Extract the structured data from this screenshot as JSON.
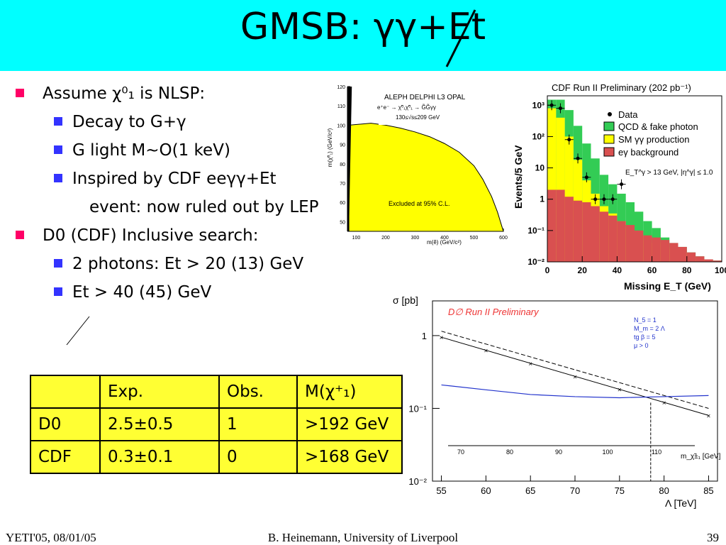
{
  "title": {
    "text": "GMSB: γγ+Et",
    "sub": ""
  },
  "bullets": {
    "b1": "Assume χ⁰₁ is NLSP:",
    "b1a": "Decay to G+γ",
    "b1b": "G light M~O(1 keV)",
    "b1c": "Inspired by CDF eeγγ+Et",
    "b1d": "event: now ruled out by LEP",
    "b2": "D0 (CDF) Inclusive search:",
    "b2a": "2 photons: Et > 20 (13) GeV",
    "b2b": "Et > 40 (45) GeV"
  },
  "table": {
    "header": [
      "",
      "Exp.",
      "Obs.",
      "M(χ⁺₁)"
    ],
    "rows": [
      [
        "D0",
        "2.5±0.5",
        "1",
        ">192 GeV"
      ],
      [
        "CDF",
        "0.3±0.1",
        "0",
        ">168 GeV"
      ]
    ]
  },
  "footer": {
    "left": "YETI'05, 08/01/05",
    "center": "B. Heinemann, University of Liverpool",
    "right": "39"
  },
  "colors": {
    "title_bg": "#00ffff",
    "bullet1": "#ff0066",
    "bullet2": "#3333ff",
    "table_bg": "#ffff33"
  },
  "chart_data": [
    {
      "type": "area",
      "legend": "ALEPH DELPHI L3 OPAL",
      "process": "e⁺e⁻ → χ̃⁰₁χ̃⁰₁ → G̃G̃γγ",
      "energy": "130≤√s≤209 GeV",
      "annotation": "Excluded at 95% C.L.",
      "xlabel": "m(ẽ) (GeV/c²)",
      "ylabel": "m(χ̃⁰₁) (GeV/c²)",
      "xlim": [
        70,
        600
      ],
      "ylim": [
        45,
        120
      ],
      "xticks": [
        "100",
        "200",
        "300",
        "400",
        "500",
        "600"
      ],
      "yticks": [
        "50",
        "60",
        "70",
        "80",
        "90",
        "100",
        "110",
        "120"
      ],
      "boundary_x": [
        75,
        150,
        200,
        250,
        300,
        350,
        400,
        450,
        500,
        530,
        560,
        580,
        600
      ],
      "boundary_y": [
        100,
        101,
        100,
        98.5,
        96.5,
        94,
        90.5,
        86,
        79,
        72,
        63,
        55,
        45
      ]
    },
    {
      "type": "bar",
      "title": "CDF Run II Preliminary (202 pb⁻¹)",
      "xlabel": "Missing E_T (GeV)",
      "ylabel": "Events/5 GeV",
      "cut_text": "E_T^γ > 13 GeV, |η^γ| ≤ 1.0",
      "yscale": "log",
      "ylim": [
        0.01,
        2000
      ],
      "xlim": [
        0,
        100
      ],
      "xticks": [
        "0",
        "20",
        "40",
        "60",
        "80",
        "100"
      ],
      "yticks": [
        "10⁻²",
        "10⁻¹",
        "1",
        "10",
        "10²",
        "10³"
      ],
      "bin_edges": [
        0,
        5,
        10,
        15,
        20,
        25,
        30,
        35,
        40,
        45,
        50,
        55,
        60,
        65,
        70,
        75,
        80,
        85,
        90,
        95,
        100
      ],
      "series": [
        {
          "name": "QCD & fake photon",
          "color": "#33cc55",
          "values": [
            1500,
            1500,
            700,
            220,
            60,
            20,
            6,
            3,
            1.5,
            0.8,
            0.4,
            0.2,
            0.12,
            0.06,
            0.04,
            0.03,
            0.02,
            0.015,
            0.012,
            0.011
          ]
        },
        {
          "name": "SM γγ production",
          "color": "#ffff00",
          "values": [
            800,
            400,
            100,
            18,
            4,
            1.5,
            0.6,
            0.35,
            0.2,
            0.12,
            0.07,
            0.05,
            0.04,
            0.03,
            0.025,
            0.02,
            0.015,
            0.012,
            0.011,
            0.01
          ]
        },
        {
          "name": "eγ background",
          "color": "#d95050",
          "values": [
            2,
            2,
            1.2,
            0.9,
            0.8,
            0.6,
            0.4,
            0.3,
            0.2,
            0.15,
            0.1,
            0.07,
            0.06,
            0.05,
            0.04,
            0.03,
            0.02,
            0.015,
            0.012,
            0.011
          ]
        }
      ],
      "data_points": {
        "name": "Data",
        "x": [
          2.5,
          7.5,
          12.5,
          17.5,
          22.5,
          27.5,
          32.5,
          37.5,
          42.5
        ],
        "y": [
          1000,
          800,
          80,
          20,
          5,
          1,
          1,
          1,
          3
        ]
      }
    },
    {
      "type": "line",
      "title": "D∅ Run II Preliminary",
      "ylabel": "σ [pb]",
      "xlabel": "Λ [TeV]",
      "xlabel2": "m_χ̃±₁ [GeV]",
      "params": [
        "N_5 = 1",
        "M_m = 2 Λ",
        "tg β = 5",
        "μ > 0"
      ],
      "yscale": "log",
      "ylim": [
        0.01,
        3
      ],
      "xlim": [
        54,
        86
      ],
      "xticks": [
        "55",
        "60",
        "65",
        "70",
        "75",
        "80",
        "85"
      ],
      "x2ticks": [
        "70",
        "80",
        "90",
        "100",
        "110"
      ],
      "yticks": [
        "10⁻²",
        "10⁻¹",
        "1"
      ],
      "series": [
        {
          "name": "",
          "x": [
            55,
            85
          ],
          "y": [
            0.95,
            0.08
          ]
        },
        {
          "name": "",
          "x": [
            55,
            85
          ],
          "y": [
            1.15,
            0.1
          ]
        },
        {
          "name": "",
          "x": [
            55,
            60,
            65,
            70,
            75,
            80,
            85
          ],
          "y": [
            0.21,
            0.18,
            0.155,
            0.145,
            0.14,
            0.145,
            0.15
          ]
        }
      ],
      "markers_x": [
        55,
        60,
        65,
        70,
        75,
        80,
        85
      ],
      "exclusion_x": 78.5
    }
  ]
}
